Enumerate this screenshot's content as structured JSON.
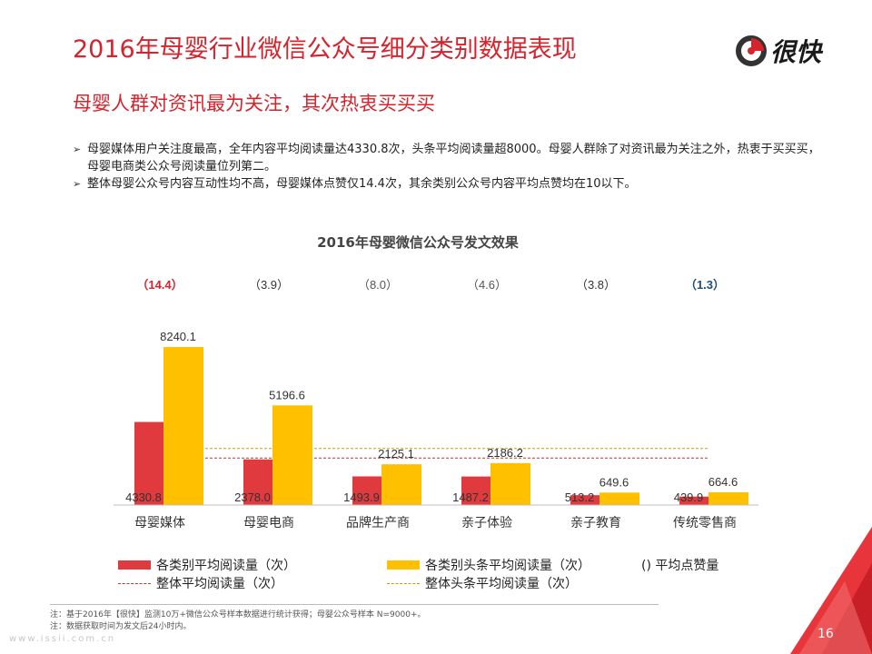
{
  "header": {
    "title": "2016年母婴行业微信公众号细分类别数据表现",
    "subtitle": "母婴人群对资讯最为关注，其次热衷买买买",
    "logo_text": "很快"
  },
  "bullets": [
    "母婴媒体用户关注度最高，全年内容平均阅读量达4330.8次，头条平均阅读量超8000。母婴人群除了对资讯最为关注之外，热衷于买买买，母婴电商类公众号阅读量位列第二。",
    "整体母婴公众号内容互动性均不高，母婴媒体点赞仅14.4次，其余类别公众号内容平均点赞均在10以下。"
  ],
  "chart_data": {
    "type": "bar",
    "title": "2016年母婴微信公众号发文效果",
    "categories": [
      "母婴媒体",
      "母婴电商",
      "品牌生产商",
      "亲子体验",
      "亲子教育",
      "传统零售商"
    ],
    "series": [
      {
        "name": "各类别平均阅读量（次）",
        "values": [
          4330.8,
          2378.0,
          1493.9,
          1487.2,
          513.2,
          439.9
        ],
        "labels": [
          "4330.8",
          "2378.0",
          "1493.9",
          "1487.2",
          "513.2",
          "439.9"
        ],
        "color": "#e03a3e"
      },
      {
        "name": "各类别头条平均阅读量（次）",
        "values": [
          8240.1,
          5196.6,
          2125.1,
          2186.2,
          649.6,
          664.6
        ],
        "labels": [
          "8240.1",
          "5196.6",
          "2125.1",
          "2186.2",
          "649.6",
          "664.6"
        ],
        "color": "#ffc000"
      }
    ],
    "likes": [
      14.4,
      3.9,
      8.0,
      4.6,
      3.8,
      1.3
    ],
    "likes_labels": [
      "（14.4）",
      "（3.9）",
      "（8.0）",
      "（4.6）",
      "（3.8）",
      "（1.3）"
    ],
    "likes_colors": [
      "#d6232c",
      "#333333",
      "#555555",
      "#555555",
      "#333333",
      "#1f4e79"
    ],
    "reference_lines": [
      {
        "name": "整体平均阅读量（次）",
        "value": 2450,
        "color": "#c0392b"
      },
      {
        "name": "整体头条平均阅读量（次）",
        "value": 2950,
        "color": "#c9a000"
      }
    ],
    "likes_legend": "() 平均点赞量",
    "ylim": [
      0,
      9000
    ]
  },
  "notes": [
    "注：基于2016年【很快】监测10万+微信公众号样本数据进行统计获得；母婴公众号样本 N=9000+。",
    "注：数据获取时间为发文后24小时内。"
  ],
  "footer": {
    "page_number": "16",
    "watermark": "www.issii.com.cn"
  },
  "colors": {
    "accent": "#d6232c",
    "red_bar": "#e03a3e",
    "yellow_bar": "#ffc000"
  }
}
